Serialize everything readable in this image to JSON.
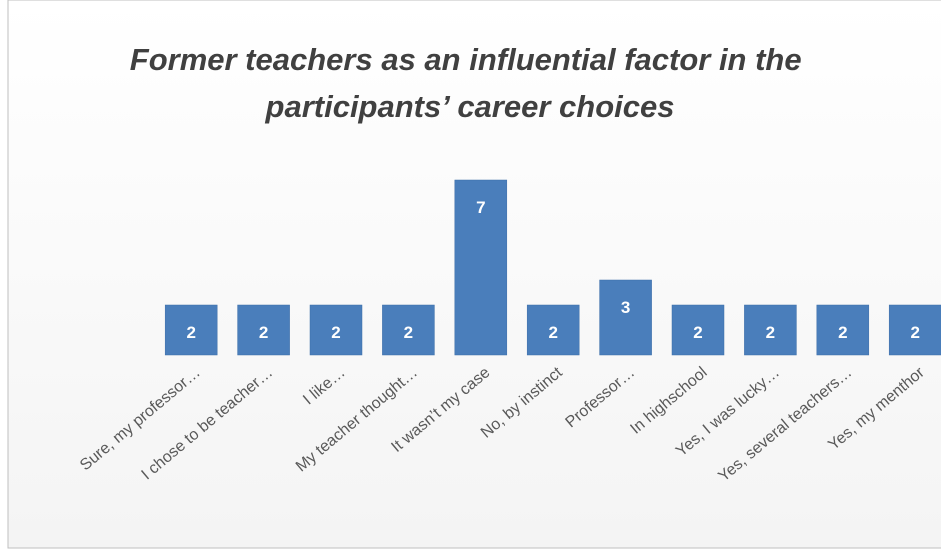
{
  "chart_data": {
    "type": "bar",
    "title": "Former teachers as an influential factor in the participants’ career choices",
    "categories": [
      "Sure, my professor…",
      "I chose to be teacher…",
      "I like…",
      "My teacher thought…",
      "It wasn’t my case",
      "No, by instinct",
      "Professor…",
      "In highschool",
      "Yes, I was lucky…",
      "Yes, several teachers…",
      "Yes, my menthor"
    ],
    "values": [
      2,
      2,
      2,
      2,
      7,
      2,
      3,
      2,
      2,
      2,
      2
    ],
    "color": "#4a7ebb",
    "ylim": [
      0,
      8
    ]
  }
}
